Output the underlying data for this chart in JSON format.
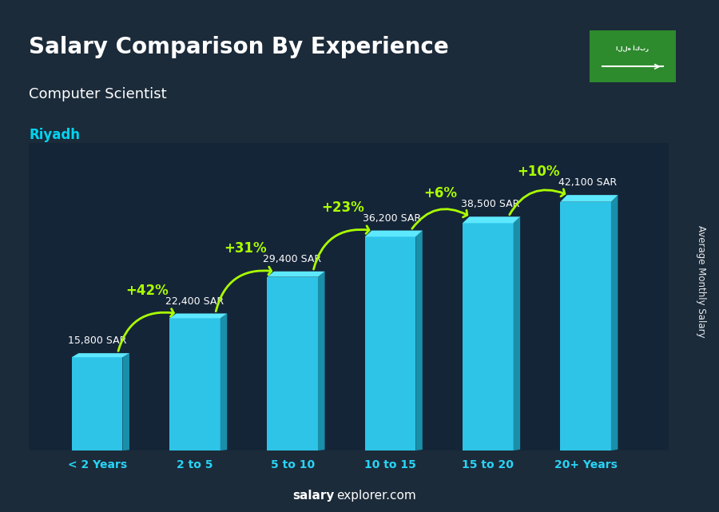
{
  "title": "Salary Comparison By Experience",
  "subtitle": "Computer Scientist",
  "city": "Riyadh",
  "ylabel": "Average Monthly Salary",
  "footer_bold": "salary",
  "footer_normal": "explorer.com",
  "categories": [
    "< 2 Years",
    "2 to 5",
    "5 to 10",
    "10 to 15",
    "15 to 20",
    "20+ Years"
  ],
  "values": [
    15800,
    22400,
    29400,
    36200,
    38500,
    42100
  ],
  "labels": [
    "15,800 SAR",
    "22,400 SAR",
    "29,400 SAR",
    "36,200 SAR",
    "38,500 SAR",
    "42,100 SAR"
  ],
  "pct_changes": [
    "+42%",
    "+31%",
    "+23%",
    "+6%",
    "+10%"
  ],
  "bar_color_face": "#2ec4e8",
  "bar_color_top": "#5de8ff",
  "bar_color_side": "#1a8faa",
  "bg_color": "#1c2b3a",
  "title_color": "#ffffff",
  "subtitle_color": "#ffffff",
  "city_color": "#00d4f0",
  "label_color": "#ffffff",
  "pct_color": "#aaff00",
  "arrow_color": "#aaff00",
  "cat_color": "#29d4f5",
  "ylim": [
    0,
    52000
  ],
  "bar_width": 0.52
}
